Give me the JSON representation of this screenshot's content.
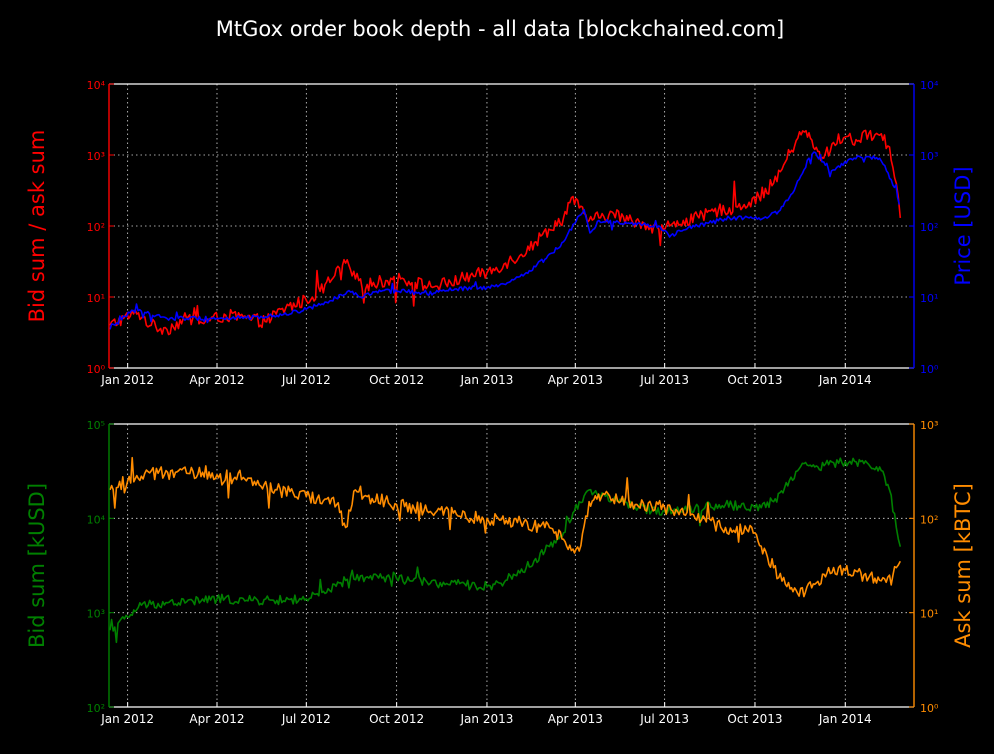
{
  "title": "MtGox order book depth - all data  [blockchained.com]",
  "colors": {
    "background": "#000000",
    "axis": "#ffffff",
    "grid": "#ffffff",
    "ratio": "#ff0000",
    "price": "#0000ff",
    "bid": "#008000",
    "ask": "#ff8c00"
  },
  "chart_data": [
    {
      "type": "line",
      "title": "",
      "ylabel": "Bid sum / ask sum",
      "y2label": "Price [USD]",
      "yscale": "log",
      "y2scale": "log",
      "ylim": [
        1,
        10000
      ],
      "y2lim": [
        1,
        10000
      ],
      "yticks": [
        "10⁰",
        "10¹",
        "10²",
        "10³",
        "10⁴"
      ],
      "y2ticks": [
        "10⁰",
        "10¹",
        "10²",
        "10³",
        "10⁴"
      ],
      "xlim": [
        "2011-12-13",
        "2014-03-12"
      ],
      "xticks": [
        {
          "date": "2012-01-01",
          "label": "Jan 2012"
        },
        {
          "date": "2012-04-01",
          "label": "Apr 2012"
        },
        {
          "date": "2012-07-01",
          "label": "Jul 2012"
        },
        {
          "date": "2012-10-01",
          "label": "Oct 2012"
        },
        {
          "date": "2013-01-01",
          "label": "Jan 2013"
        },
        {
          "date": "2013-04-01",
          "label": "Apr 2013"
        },
        {
          "date": "2013-07-01",
          "label": "Jul 2013"
        },
        {
          "date": "2013-10-01",
          "label": "Oct 2013"
        },
        {
          "date": "2014-01-01",
          "label": "Jan 2014"
        }
      ],
      "grid": true,
      "series": [
        {
          "axis": "left",
          "color_key": "ratio",
          "x": [
            "2011-12-14",
            "2011-12-28",
            "2012-01-12",
            "2012-01-25",
            "2012-02-10",
            "2012-03-01",
            "2012-03-20",
            "2012-04-10",
            "2012-05-01",
            "2012-05-20",
            "2012-06-10",
            "2012-07-01",
            "2012-07-15",
            "2012-07-30",
            "2012-08-10",
            "2012-08-20",
            "2012-09-01",
            "2012-09-20",
            "2012-10-05",
            "2012-10-20",
            "2012-11-05",
            "2012-11-25",
            "2012-12-15",
            "2013-01-01",
            "2013-01-20",
            "2013-02-05",
            "2013-02-20",
            "2013-03-05",
            "2013-03-20",
            "2013-03-28",
            "2013-04-05",
            "2013-04-15",
            "2013-04-25",
            "2013-05-10",
            "2013-05-25",
            "2013-06-10",
            "2013-06-25",
            "2013-07-06",
            "2013-07-20",
            "2013-08-05",
            "2013-08-20",
            "2013-09-05",
            "2013-09-20",
            "2013-10-05",
            "2013-10-20",
            "2013-11-01",
            "2013-11-12",
            "2013-11-22",
            "2013-12-01",
            "2013-12-10",
            "2013-12-20",
            "2014-01-01",
            "2014-01-15",
            "2014-01-25",
            "2014-02-05",
            "2014-02-15",
            "2014-02-22",
            "2014-02-26"
          ],
          "values": [
            4,
            5,
            6,
            4,
            3.5,
            5,
            4.5,
            5.5,
            5,
            4.5,
            7,
            9,
            12,
            20,
            30,
            18,
            15,
            17,
            18,
            16,
            14,
            16,
            20,
            22,
            30,
            40,
            60,
            90,
            130,
            250,
            180,
            120,
            130,
            150,
            120,
            110,
            90,
            100,
            120,
            130,
            160,
            180,
            200,
            260,
            400,
            800,
            1600,
            2200,
            1200,
            900,
            1500,
            1800,
            1600,
            2000,
            1900,
            1300,
            400,
            130
          ]
        },
        {
          "axis": "right",
          "color_key": "price",
          "name": "",
          "x": [
            "2011-12-14",
            "2012-01-05",
            "2012-01-20",
            "2012-02-10",
            "2012-03-01",
            "2012-04-01",
            "2012-05-01",
            "2012-06-01",
            "2012-07-01",
            "2012-07-20",
            "2012-08-10",
            "2012-08-17",
            "2012-08-25",
            "2012-09-15",
            "2012-10-10",
            "2012-11-01",
            "2012-12-01",
            "2013-01-01",
            "2013-01-20",
            "2013-02-10",
            "2013-03-01",
            "2013-03-20",
            "2013-04-05",
            "2013-04-10",
            "2013-04-16",
            "2013-04-25",
            "2013-05-10",
            "2013-06-01",
            "2013-06-25",
            "2013-07-06",
            "2013-07-25",
            "2013-08-15",
            "2013-09-05",
            "2013-09-25",
            "2013-10-10",
            "2013-10-25",
            "2013-11-05",
            "2013-11-15",
            "2013-11-25",
            "2013-11-30",
            "2013-12-10",
            "2013-12-18",
            "2013-12-25",
            "2014-01-10",
            "2014-01-25",
            "2014-02-05",
            "2014-02-12",
            "2014-02-20",
            "2014-02-25"
          ],
          "values": [
            3.5,
            6.5,
            6,
            5,
            5,
            5,
            5.1,
            5.5,
            6.7,
            8.5,
            11,
            12,
            10,
            12,
            12,
            11,
            13,
            13.5,
            15,
            22,
            34,
            60,
            140,
            170,
            80,
            120,
            115,
            110,
            100,
            70,
            95,
            110,
            130,
            130,
            130,
            160,
            250,
            450,
            900,
            1100,
            800,
            600,
            700,
            900,
            950,
            900,
            600,
            350,
            200
          ]
        }
      ]
    },
    {
      "type": "line",
      "title": "",
      "ylabel": "Bid sum [kUSD]",
      "y2label": "Ask sum [kBTC]",
      "yscale": "log",
      "y2scale": "log",
      "ylim": [
        100,
        100000
      ],
      "y2lim": [
        1,
        1000
      ],
      "yticks": [
        "10²",
        "10³",
        "10⁴",
        "10⁵"
      ],
      "y2ticks": [
        "10⁰",
        "10¹",
        "10²",
        "10³"
      ],
      "xlim": [
        "2011-12-13",
        "2014-03-12"
      ],
      "xticks": [
        {
          "date": "2012-01-01",
          "label": "Jan 2012"
        },
        {
          "date": "2012-04-01",
          "label": "Apr 2012"
        },
        {
          "date": "2012-07-01",
          "label": "Jul 2012"
        },
        {
          "date": "2012-10-01",
          "label": "Oct 2012"
        },
        {
          "date": "2013-01-01",
          "label": "Jan 2013"
        },
        {
          "date": "2013-04-01",
          "label": "Apr 2013"
        },
        {
          "date": "2013-07-01",
          "label": "Jul 2013"
        },
        {
          "date": "2013-10-01",
          "label": "Oct 2013"
        },
        {
          "date": "2014-01-01",
          "label": "Jan 2014"
        }
      ],
      "grid": true,
      "series": [
        {
          "axis": "left",
          "color_key": "bid",
          "x": [
            "2011-12-14",
            "2012-01-01",
            "2012-01-15",
            "2012-02-01",
            "2012-03-01",
            "2012-04-01",
            "2012-05-01",
            "2012-06-01",
            "2012-07-01",
            "2012-07-20",
            "2012-08-10",
            "2012-09-01",
            "2012-10-01",
            "2012-11-01",
            "2012-12-01",
            "2013-01-01",
            "2013-01-20",
            "2013-02-10",
            "2013-03-01",
            "2013-03-20",
            "2013-04-05",
            "2013-04-15",
            "2013-04-25",
            "2013-05-10",
            "2013-06-01",
            "2013-07-01",
            "2013-08-01",
            "2013-09-01",
            "2013-10-01",
            "2013-10-20",
            "2013-11-05",
            "2013-11-20",
            "2013-12-01",
            "2013-12-15",
            "2014-01-01",
            "2014-01-20",
            "2014-02-05",
            "2014-02-15",
            "2014-02-22",
            "2014-02-26"
          ],
          "values": [
            650,
            900,
            1200,
            1250,
            1300,
            1400,
            1350,
            1350,
            1400,
            1600,
            2200,
            2400,
            2300,
            2100,
            2000,
            1900,
            2200,
            3000,
            4500,
            7000,
            15000,
            20000,
            18000,
            16000,
            13000,
            12000,
            13000,
            14000,
            13000,
            15000,
            25000,
            38000,
            35000,
            37000,
            40000,
            38000,
            35000,
            20000,
            8000,
            5000
          ]
        },
        {
          "axis": "right",
          "color_key": "ask",
          "x": [
            "2011-12-14",
            "2012-01-01",
            "2012-01-15",
            "2012-02-01",
            "2012-03-01",
            "2012-04-01",
            "2012-05-01",
            "2012-06-01",
            "2012-07-01",
            "2012-07-20",
            "2012-08-01",
            "2012-08-10",
            "2012-08-15",
            "2012-08-20",
            "2012-09-01",
            "2012-10-01",
            "2012-11-01",
            "2012-12-01",
            "2013-01-01",
            "2013-02-01",
            "2013-03-01",
            "2013-03-20",
            "2013-04-05",
            "2013-04-15",
            "2013-05-01",
            "2013-06-01",
            "2013-07-01",
            "2013-08-01",
            "2013-09-01",
            "2013-10-01",
            "2013-10-20",
            "2013-11-01",
            "2013-11-15",
            "2013-12-01",
            "2013-12-15",
            "2014-01-01",
            "2014-01-20",
            "2014-02-05",
            "2014-02-15",
            "2014-02-22",
            "2014-02-26"
          ],
          "values": [
            200,
            250,
            280,
            300,
            300,
            290,
            250,
            200,
            170,
            160,
            140,
            80,
            120,
            200,
            170,
            140,
            120,
            110,
            100,
            90,
            80,
            60,
            45,
            150,
            180,
            140,
            130,
            100,
            80,
            70,
            30,
            20,
            15,
            20,
            30,
            28,
            25,
            22,
            25,
            30,
            35
          ]
        }
      ]
    }
  ]
}
